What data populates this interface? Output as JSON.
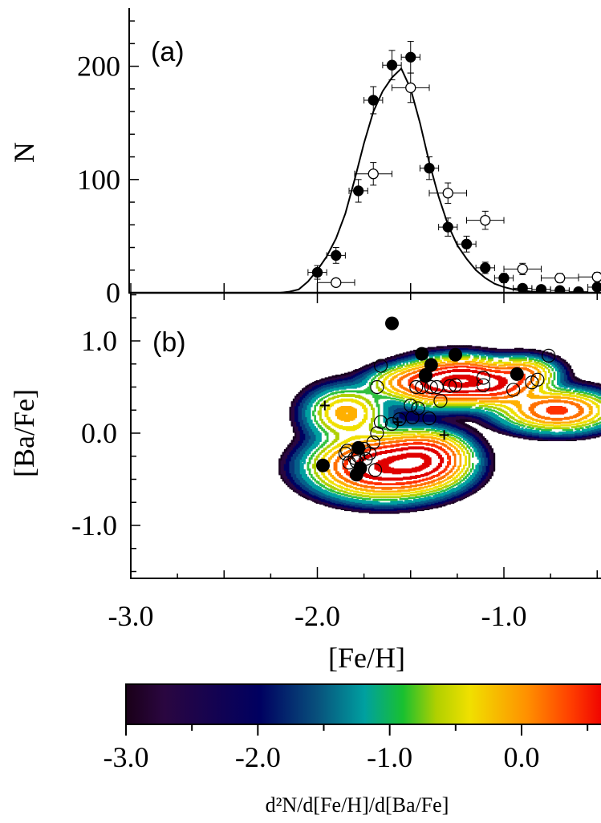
{
  "chart_data": [
    {
      "panel": "(a)",
      "type": "scatter",
      "ylabel": "N",
      "xlim": [
        -3.0,
        -0.45
      ],
      "ylim": [
        0,
        250
      ],
      "yticks": [
        0,
        100,
        200
      ],
      "ytick_labels": [
        "0",
        "100",
        "200"
      ],
      "series": [
        {
          "style": "filled-circle",
          "x": [
            -2.0,
            -1.9,
            -1.78,
            -1.7,
            -1.6,
            -1.5,
            -1.4,
            -1.3,
            -1.2,
            -1.1,
            -1.0,
            -0.9,
            -0.8,
            -0.7,
            -0.6,
            -0.5
          ],
          "y": [
            18,
            33,
            90,
            170,
            201,
            208,
            110,
            58,
            43,
            22,
            13,
            4,
            3,
            2,
            1,
            5
          ],
          "xerr": 0.05,
          "yerr": [
            6,
            7,
            10,
            12,
            13,
            14,
            10,
            8,
            7,
            5,
            4,
            2,
            2,
            2,
            1,
            2
          ]
        },
        {
          "style": "open-circle",
          "x": [
            -1.9,
            -1.7,
            -1.5,
            -1.3,
            -1.1,
            -0.9,
            -0.7,
            -0.5
          ],
          "y": [
            9,
            105,
            181,
            88,
            64,
            21,
            13,
            14
          ],
          "xerr": 0.1,
          "yerr": [
            3,
            10,
            13,
            9,
            8,
            5,
            4,
            4
          ]
        },
        {
          "style": "line",
          "x": [
            -2.2,
            -2.15,
            -2.1,
            -2.05,
            -2.0,
            -1.95,
            -1.9,
            -1.85,
            -1.8,
            -1.75,
            -1.7,
            -1.65,
            -1.6,
            -1.55,
            -1.5,
            -1.45,
            -1.4,
            -1.35,
            -1.3,
            -1.25,
            -1.2,
            -1.15,
            -1.1,
            -1.05,
            -1.0,
            -0.95,
            -0.9,
            -0.85,
            -0.8,
            -0.75,
            -0.7,
            -0.65,
            -0.6,
            -0.55,
            -0.5,
            -0.45
          ],
          "y": [
            0,
            1,
            3,
            10,
            20,
            32,
            48,
            70,
            100,
            132,
            160,
            178,
            190,
            198,
            180,
            150,
            115,
            85,
            60,
            42,
            30,
            20,
            13,
            8,
            5,
            3,
            2,
            1,
            1,
            0,
            0,
            0,
            0,
            0,
            0,
            0
          ]
        }
      ]
    },
    {
      "panel": "(b)",
      "type": "scatter",
      "xlabel": "[Fe/H]",
      "ylabel": "[Ba/Fe]",
      "xlim": [
        -3.0,
        -0.45
      ],
      "ylim": [
        -1.55,
        1.55
      ],
      "xticks": [
        -3.0,
        -2.0,
        -1.0
      ],
      "xtick_labels": [
        "-3.0",
        "-2.0",
        "-1.0"
      ],
      "yticks": [
        -1.0,
        0.0,
        1.0
      ],
      "ytick_labels": [
        "-1.0",
        "0.0",
        "1.0"
      ],
      "contour_components": [
        {
          "cx": -1.65,
          "cy": -0.36,
          "sx": 0.19,
          "sy": 0.17,
          "amp": 1.0
        },
        {
          "cx": -1.42,
          "cy": -0.27,
          "sx": 0.12,
          "sy": 0.15,
          "amp": 0.65
        },
        {
          "cx": -1.85,
          "cy": 0.22,
          "sx": 0.12,
          "sy": 0.16,
          "amp": 0.3
        },
        {
          "cx": -1.35,
          "cy": 0.55,
          "sx": 0.12,
          "sy": 0.13,
          "amp": 0.75
        },
        {
          "cx": -1.2,
          "cy": 0.6,
          "sx": 0.1,
          "sy": 0.12,
          "amp": 0.55
        },
        {
          "cx": -1.05,
          "cy": 0.52,
          "sx": 0.12,
          "sy": 0.12,
          "amp": 0.6
        },
        {
          "cx": -0.72,
          "cy": 0.25,
          "sx": 0.16,
          "sy": 0.12,
          "amp": 0.55
        },
        {
          "cx": -1.55,
          "cy": 0.55,
          "sx": 0.11,
          "sy": 0.1,
          "amp": 0.25
        },
        {
          "cx": -0.9,
          "cy": 0.65,
          "sx": 0.1,
          "sy": 0.1,
          "amp": 0.35
        }
      ],
      "filled_points": {
        "x": [
          -1.6,
          -1.44,
          -1.39,
          -1.42,
          -1.26,
          -1.42,
          -0.93,
          -1.97,
          -1.78,
          -1.77,
          -1.79
        ],
        "y": [
          1.19,
          0.86,
          0.74,
          0.63,
          0.85,
          0.62,
          0.64,
          -0.35,
          -0.16,
          -0.38,
          -0.45
        ]
      },
      "open_points": {
        "x": [
          -1.66,
          -1.68,
          -1.47,
          -1.44,
          -1.39,
          -1.36,
          -1.29,
          -1.26,
          -1.11,
          -1.11,
          -0.95,
          -0.85,
          -0.82,
          -0.76,
          -1.5,
          -1.49,
          -1.46,
          -1.4,
          -1.34,
          -1.56,
          -1.6,
          -1.66,
          -1.68,
          -1.7,
          -1.75,
          -1.78,
          -1.8,
          -1.83,
          -1.74,
          -1.72,
          -1.69,
          -1.79,
          -1.84,
          -1.85
        ],
        "y": [
          0.73,
          0.5,
          0.5,
          0.5,
          0.5,
          0.5,
          0.51,
          0.52,
          0.52,
          0.6,
          0.47,
          0.55,
          0.58,
          0.84,
          0.3,
          0.17,
          0.27,
          0.16,
          0.35,
          0.15,
          0.1,
          0.12,
          0.0,
          -0.1,
          -0.17,
          -0.25,
          -0.27,
          -0.32,
          -0.28,
          -0.22,
          -0.4,
          -0.31,
          -0.19,
          -0.22
        ]
      },
      "plus_points": {
        "x": [
          -1.96,
          -1.57,
          -1.32
        ],
        "y": [
          0.3,
          0.12,
          -0.02
        ]
      }
    }
  ],
  "colorbar": {
    "label": "d²N/d[Fe/H]/d[Ba/Fe]",
    "range": [
      -3.0,
      0.6
    ],
    "ticks": [
      -3.0,
      -2.0,
      -1.0,
      0.0
    ],
    "tick_labels": [
      "-3.0",
      "-2.0",
      "-1.0",
      "0.0"
    ],
    "colors": [
      "#1a0018",
      "#2a0640",
      "#000060",
      "#08507c",
      "#00a0a0",
      "#18c030",
      "#b0d000",
      "#f0e000",
      "#ff9000",
      "#ff4000",
      "#f00000"
    ]
  }
}
